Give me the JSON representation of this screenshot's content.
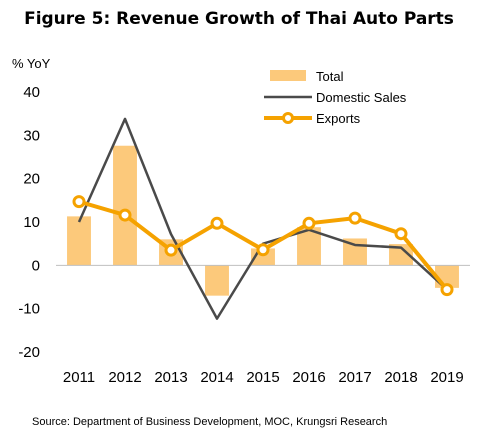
{
  "chart_data": {
    "type": "bar",
    "title": "Figure 5: Revenue Growth of Thai Auto Parts",
    "ylabel": "% YoY",
    "xlabel": "",
    "ylim": [
      -20,
      40
    ],
    "yticks": [
      -20,
      -10,
      0,
      10,
      20,
      30,
      40
    ],
    "grid": false,
    "legend_position": "top-right",
    "categories": [
      "2011",
      "2012",
      "2013",
      "2014",
      "2015",
      "2016",
      "2017",
      "2018",
      "2019"
    ],
    "series": [
      {
        "name": "Total",
        "type": "bar",
        "color": "#FCC97B",
        "values": [
          11.3,
          27.6,
          6.0,
          -7.0,
          3.9,
          8.8,
          6.2,
          4.9,
          -5.2
        ]
      },
      {
        "name": "Domestic Sales",
        "type": "line",
        "color": "#4A4A4A",
        "values": [
          10.0,
          33.8,
          7.2,
          -12.3,
          5.0,
          8.2,
          4.7,
          4.1,
          -5.6
        ]
      },
      {
        "name": "Exports",
        "type": "line-marker",
        "color": "#F5A200",
        "values": [
          14.7,
          11.6,
          3.5,
          9.7,
          3.6,
          9.7,
          10.9,
          7.3,
          -5.6
        ]
      }
    ],
    "source": "Source: Department of Business Development, MOC, Krungsri Research"
  }
}
